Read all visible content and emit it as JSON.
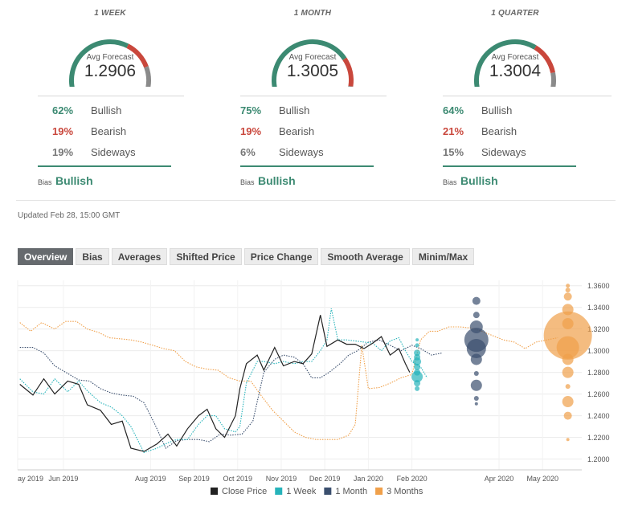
{
  "forecasts": [
    {
      "period": "1 WEEK",
      "avg_label": "Avg Forecast",
      "avg_value": "1.2906",
      "bullish_pct": "62%",
      "bearish_pct": "19%",
      "sideways_pct": "19%",
      "bullish_label": "Bullish",
      "bearish_label": "Bearish",
      "sideways_label": "Sideways",
      "bias_label": "Bias",
      "bias_value": "Bullish"
    },
    {
      "period": "1 MONTH",
      "avg_label": "Avg Forecast",
      "avg_value": "1.3005",
      "bullish_pct": "75%",
      "bearish_pct": "19%",
      "sideways_pct": "6%",
      "bullish_label": "Bullish",
      "bearish_label": "Bearish",
      "sideways_label": "Sideways",
      "bias_label": "Bias",
      "bias_value": "Bullish"
    },
    {
      "period": "1 QUARTER",
      "avg_label": "Avg Forecast",
      "avg_value": "1.3004",
      "bullish_pct": "64%",
      "bearish_pct": "21%",
      "sideways_pct": "15%",
      "bullish_label": "Bullish",
      "bearish_label": "Bearish",
      "sideways_label": "Sideways",
      "bias_label": "Bias",
      "bias_value": "Bullish"
    }
  ],
  "gauge_fractions": [
    [
      0.62,
      0.19,
      0.19
    ],
    [
      0.75,
      0.19,
      0.06
    ],
    [
      0.64,
      0.21,
      0.15
    ]
  ],
  "colors": {
    "bullish": "#3c8a72",
    "bearish": "#c9473c",
    "sideways": "#8a8a8a",
    "close": "#222222",
    "week": "#26b3ba",
    "month": "#3b4f6e",
    "quarter": "#f0a04a"
  },
  "updated": "Updated Feb 28, 15:00 GMT",
  "tabs": [
    {
      "label": "Overview",
      "active": true
    },
    {
      "label": "Bias",
      "active": false
    },
    {
      "label": "Averages",
      "active": false
    },
    {
      "label": "Shifted Price",
      "active": false
    },
    {
      "label": "Price Change",
      "active": false
    },
    {
      "label": "Smooth Average",
      "active": false
    },
    {
      "label": "Minim/Max",
      "active": false
    }
  ],
  "chart_data": {
    "type": "line",
    "x_labels": [
      "ay 2019",
      "Jun 2019",
      "Aug 2019",
      "Sep 2019",
      "Oct 2019",
      "Nov 2019",
      "Dec 2019",
      "Jan 2020",
      "Feb 2020",
      "Apr 2020",
      "May 2020"
    ],
    "x_label_months": [
      4.95,
      6.0,
      8.0,
      9.0,
      10.0,
      11.0,
      12.0,
      13.0,
      14.0,
      16.0,
      17.0
    ],
    "y_ticks": [
      "1.3600",
      "1.3400",
      "1.3200",
      "1.3000",
      "1.2800",
      "1.2600",
      "1.2400",
      "1.2200",
      "1.2000"
    ],
    "ylim": [
      1.19,
      1.365
    ],
    "xlim": [
      4.95,
      17.9
    ],
    "legend": [
      {
        "name": "Close Price",
        "key": "close"
      },
      {
        "name": "1 Week",
        "key": "week"
      },
      {
        "name": "1 Month",
        "key": "month"
      },
      {
        "name": "3 Months",
        "key": "quarter"
      }
    ],
    "series": [
      {
        "key": "close",
        "style": "solid",
        "points": [
          [
            5.0,
            1.269
          ],
          [
            5.3,
            1.259
          ],
          [
            5.55,
            1.274
          ],
          [
            5.8,
            1.26
          ],
          [
            6.1,
            1.272
          ],
          [
            6.35,
            1.269
          ],
          [
            6.55,
            1.25
          ],
          [
            6.85,
            1.245
          ],
          [
            7.1,
            1.232
          ],
          [
            7.35,
            1.235
          ],
          [
            7.55,
            1.21
          ],
          [
            7.85,
            1.207
          ],
          [
            8.15,
            1.214
          ],
          [
            8.4,
            1.223
          ],
          [
            8.6,
            1.212
          ],
          [
            8.85,
            1.228
          ],
          [
            9.1,
            1.24
          ],
          [
            9.3,
            1.246
          ],
          [
            9.5,
            1.228
          ],
          [
            9.7,
            1.22
          ],
          [
            9.95,
            1.24
          ],
          [
            10.05,
            1.265
          ],
          [
            10.2,
            1.288
          ],
          [
            10.45,
            1.296
          ],
          [
            10.6,
            1.282
          ],
          [
            10.85,
            1.303
          ],
          [
            11.05,
            1.286
          ],
          [
            11.3,
            1.29
          ],
          [
            11.5,
            1.288
          ],
          [
            11.7,
            1.297
          ],
          [
            11.9,
            1.333
          ],
          [
            12.05,
            1.304
          ],
          [
            12.3,
            1.31
          ],
          [
            12.5,
            1.306
          ],
          [
            12.7,
            1.306
          ],
          [
            12.9,
            1.302
          ],
          [
            13.1,
            1.307
          ],
          [
            13.3,
            1.313
          ],
          [
            13.5,
            1.296
          ],
          [
            13.7,
            1.302
          ],
          [
            13.85,
            1.288
          ],
          [
            13.95,
            1.28
          ]
        ]
      },
      {
        "key": "week",
        "style": "dotted",
        "points": [
          [
            5.0,
            1.274
          ],
          [
            5.3,
            1.262
          ],
          [
            5.55,
            1.26
          ],
          [
            5.8,
            1.274
          ],
          [
            6.1,
            1.262
          ],
          [
            6.35,
            1.272
          ],
          [
            6.55,
            1.263
          ],
          [
            6.85,
            1.252
          ],
          [
            7.1,
            1.248
          ],
          [
            7.35,
            1.24
          ],
          [
            7.55,
            1.23
          ],
          [
            7.85,
            1.206
          ],
          [
            8.15,
            1.21
          ],
          [
            8.4,
            1.215
          ],
          [
            8.6,
            1.218
          ],
          [
            8.85,
            1.218
          ],
          [
            9.1,
            1.232
          ],
          [
            9.3,
            1.24
          ],
          [
            9.5,
            1.24
          ],
          [
            9.7,
            1.228
          ],
          [
            9.95,
            1.225
          ],
          [
            10.05,
            1.23
          ],
          [
            10.2,
            1.27
          ],
          [
            10.45,
            1.29
          ],
          [
            10.6,
            1.29
          ],
          [
            10.85,
            1.288
          ],
          [
            11.05,
            1.29
          ],
          [
            11.3,
            1.288
          ],
          [
            11.5,
            1.29
          ],
          [
            11.7,
            1.29
          ],
          [
            11.9,
            1.3
          ],
          [
            12.05,
            1.31
          ],
          [
            12.15,
            1.339
          ],
          [
            12.3,
            1.31
          ],
          [
            12.5,
            1.31
          ],
          [
            12.7,
            1.309
          ],
          [
            12.9,
            1.308
          ],
          [
            13.1,
            1.307
          ],
          [
            13.3,
            1.3
          ],
          [
            13.5,
            1.309
          ],
          [
            13.7,
            1.312
          ],
          [
            13.85,
            1.3
          ],
          [
            14.0,
            1.29
          ],
          [
            14.2,
            1.285
          ],
          [
            14.35,
            1.275
          ]
        ]
      },
      {
        "key": "month",
        "style": "dotted",
        "points": [
          [
            5.0,
            1.303
          ],
          [
            5.3,
            1.303
          ],
          [
            5.55,
            1.298
          ],
          [
            5.8,
            1.286
          ],
          [
            6.1,
            1.279
          ],
          [
            6.35,
            1.273
          ],
          [
            6.6,
            1.272
          ],
          [
            6.85,
            1.265
          ],
          [
            7.1,
            1.261
          ],
          [
            7.35,
            1.259
          ],
          [
            7.6,
            1.258
          ],
          [
            7.85,
            1.252
          ],
          [
            8.1,
            1.232
          ],
          [
            8.35,
            1.21
          ],
          [
            8.6,
            1.217
          ],
          [
            8.85,
            1.218
          ],
          [
            9.1,
            1.218
          ],
          [
            9.35,
            1.216
          ],
          [
            9.6,
            1.223
          ],
          [
            9.85,
            1.222
          ],
          [
            10.1,
            1.223
          ],
          [
            10.35,
            1.235
          ],
          [
            10.6,
            1.28
          ],
          [
            10.85,
            1.292
          ],
          [
            11.05,
            1.296
          ],
          [
            11.3,
            1.294
          ],
          [
            11.5,
            1.288
          ],
          [
            11.7,
            1.275
          ],
          [
            11.9,
            1.275
          ],
          [
            12.1,
            1.28
          ],
          [
            12.35,
            1.288
          ],
          [
            12.55,
            1.296
          ],
          [
            12.75,
            1.3
          ],
          [
            13.0,
            1.308
          ],
          [
            13.25,
            1.31
          ],
          [
            13.5,
            1.305
          ],
          [
            13.75,
            1.3
          ],
          [
            14.0,
            1.305
          ],
          [
            14.2,
            1.302
          ],
          [
            14.45,
            1.296
          ],
          [
            14.7,
            1.298
          ]
        ]
      },
      {
        "key": "quarter",
        "style": "dotted",
        "points": [
          [
            5.0,
            1.326
          ],
          [
            5.25,
            1.318
          ],
          [
            5.5,
            1.326
          ],
          [
            5.8,
            1.32
          ],
          [
            6.05,
            1.327
          ],
          [
            6.3,
            1.327
          ],
          [
            6.55,
            1.32
          ],
          [
            6.8,
            1.317
          ],
          [
            7.05,
            1.312
          ],
          [
            7.3,
            1.311
          ],
          [
            7.55,
            1.31
          ],
          [
            7.8,
            1.308
          ],
          [
            8.05,
            1.305
          ],
          [
            8.3,
            1.302
          ],
          [
            8.55,
            1.3
          ],
          [
            8.8,
            1.29
          ],
          [
            9.05,
            1.285
          ],
          [
            9.3,
            1.283
          ],
          [
            9.55,
            1.282
          ],
          [
            9.8,
            1.275
          ],
          [
            10.05,
            1.272
          ],
          [
            10.3,
            1.272
          ],
          [
            10.55,
            1.258
          ],
          [
            10.8,
            1.245
          ],
          [
            11.05,
            1.235
          ],
          [
            11.3,
            1.225
          ],
          [
            11.55,
            1.22
          ],
          [
            11.8,
            1.218
          ],
          [
            12.05,
            1.218
          ],
          [
            12.3,
            1.218
          ],
          [
            12.55,
            1.222
          ],
          [
            12.7,
            1.232
          ],
          [
            12.85,
            1.305
          ],
          [
            13.0,
            1.265
          ],
          [
            13.25,
            1.266
          ],
          [
            13.5,
            1.27
          ],
          [
            13.75,
            1.275
          ],
          [
            14.0,
            1.278
          ],
          [
            14.2,
            1.31
          ],
          [
            14.4,
            1.318
          ],
          [
            14.6,
            1.318
          ],
          [
            14.85,
            1.322
          ],
          [
            15.1,
            1.322
          ],
          [
            15.35,
            1.321
          ],
          [
            15.6,
            1.318
          ],
          [
            15.85,
            1.314
          ],
          [
            16.1,
            1.31
          ],
          [
            16.35,
            1.308
          ],
          [
            16.6,
            1.302
          ],
          [
            16.85,
            1.308
          ],
          [
            17.1,
            1.31
          ],
          [
            17.35,
            1.312
          ]
        ]
      }
    ],
    "forecast_bubbles": [
      {
        "key": "week",
        "x": 14.12,
        "points": [
          [
            1.31,
            2
          ],
          [
            1.305,
            2.5
          ],
          [
            1.298,
            4
          ],
          [
            1.294,
            4
          ],
          [
            1.29,
            5
          ],
          [
            1.285,
            4
          ],
          [
            1.28,
            4
          ],
          [
            1.276,
            7
          ],
          [
            1.27,
            4
          ],
          [
            1.265,
            3
          ]
        ]
      },
      {
        "key": "month",
        "x": 15.48,
        "points": [
          [
            1.346,
            5
          ],
          [
            1.333,
            4
          ],
          [
            1.322,
            8
          ],
          [
            1.31,
            15
          ],
          [
            1.302,
            12
          ],
          [
            1.292,
            7
          ],
          [
            1.279,
            3
          ],
          [
            1.268,
            7
          ],
          [
            1.256,
            3
          ],
          [
            1.251,
            2
          ]
        ]
      },
      {
        "key": "quarter",
        "x": 17.58,
        "points": [
          [
            1.36,
            2.5
          ],
          [
            1.356,
            3
          ],
          [
            1.35,
            5
          ],
          [
            1.338,
            7
          ],
          [
            1.325,
            7
          ],
          [
            1.314,
            30
          ],
          [
            1.303,
            14
          ],
          [
            1.292,
            7
          ],
          [
            1.28,
            7
          ],
          [
            1.267,
            3
          ],
          [
            1.253,
            7
          ],
          [
            1.24,
            5
          ],
          [
            1.218,
            2
          ]
        ]
      }
    ]
  }
}
